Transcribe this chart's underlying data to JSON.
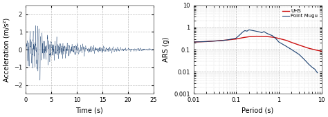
{
  "left_plot": {
    "xlabel": "Time (s)",
    "ylabel": "Acceleration (m/s²)",
    "xlim": [
      0,
      25
    ],
    "ylim": [
      -2.5,
      2.5
    ],
    "yticks": [
      -2,
      -1,
      0,
      1,
      2
    ],
    "xticks": [
      0,
      5,
      10,
      15,
      20,
      25
    ],
    "line_color": "#1a3f6f",
    "grid_color": "#bbbbbb",
    "grid_style": "--"
  },
  "right_plot": {
    "xlabel": "Period (s)",
    "ylabel": "ARS (g)",
    "xlim": [
      0.01,
      10
    ],
    "ylim": [
      0.001,
      10
    ],
    "uhs_color": "#cc1111",
    "point_mugu_color": "#1a3f6f",
    "legend_labels": [
      "UHS",
      "Point Mugu"
    ],
    "grid_color": "#bbbbbb",
    "grid_style": "--"
  },
  "figure": {
    "background_color": "#ffffff",
    "label_fontsize": 7,
    "tick_fontsize": 6
  },
  "uhs_periods": [
    0.01,
    0.02,
    0.05,
    0.1,
    0.15,
    0.2,
    0.3,
    0.5,
    0.75,
    1.0,
    1.5,
    2.0,
    3.0,
    5.0,
    7.5,
    10.0
  ],
  "uhs_ars": [
    0.22,
    0.23,
    0.26,
    0.3,
    0.35,
    0.38,
    0.4,
    0.39,
    0.36,
    0.32,
    0.26,
    0.21,
    0.16,
    0.115,
    0.095,
    0.085
  ],
  "pm_periods": [
    0.01,
    0.02,
    0.04,
    0.06,
    0.08,
    0.1,
    0.12,
    0.14,
    0.16,
    0.18,
    0.2,
    0.25,
    0.3,
    0.35,
    0.4,
    0.45,
    0.5,
    0.55,
    0.6,
    0.7,
    0.8,
    0.9,
    1.0,
    1.2,
    1.5,
    2.0,
    3.0,
    4.0,
    5.0,
    6.0,
    7.0,
    8.0
  ],
  "pm_ars": [
    0.22,
    0.23,
    0.25,
    0.27,
    0.3,
    0.33,
    0.45,
    0.6,
    0.72,
    0.68,
    0.78,
    0.72,
    0.67,
    0.63,
    0.58,
    0.65,
    0.57,
    0.52,
    0.48,
    0.43,
    0.35,
    0.28,
    0.22,
    0.18,
    0.14,
    0.1,
    0.06,
    0.035,
    0.022,
    0.016,
    0.013,
    0.009
  ]
}
